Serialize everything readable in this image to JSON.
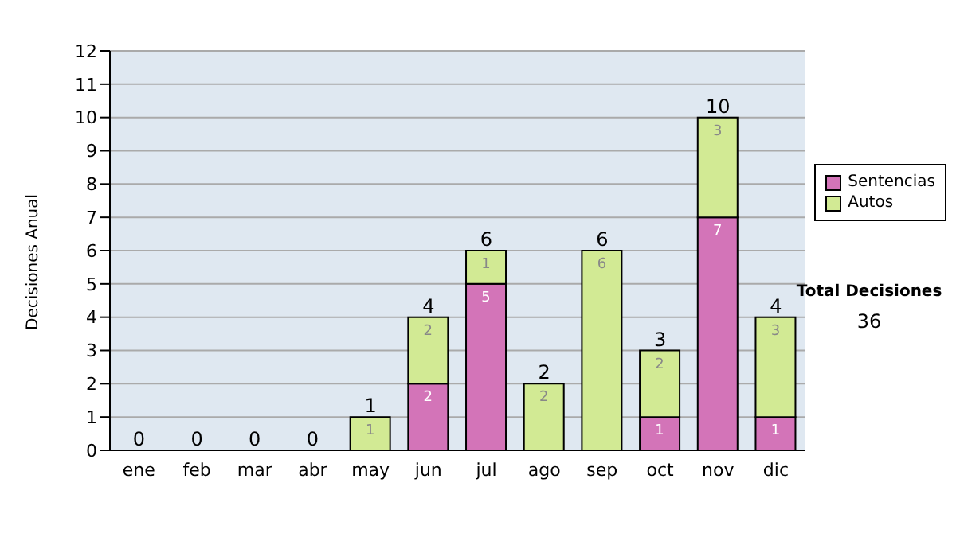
{
  "chart_data": {
    "type": "bar",
    "stacked": true,
    "ylabel": "Decisiones Anual",
    "categories": [
      "ene",
      "feb",
      "mar",
      "abr",
      "may",
      "jun",
      "jul",
      "ago",
      "sep",
      "oct",
      "nov",
      "dic"
    ],
    "series": [
      {
        "name": "Sentencias",
        "color": "#d374b8",
        "values": [
          0,
          0,
          0,
          0,
          0,
          2,
          5,
          0,
          0,
          1,
          7,
          1
        ],
        "value_labels": [
          null,
          null,
          null,
          null,
          null,
          "2",
          "5",
          null,
          null,
          "1",
          "7",
          "1"
        ]
      },
      {
        "name": "Autos",
        "color": "#d2ea94",
        "values": [
          0,
          0,
          0,
          0,
          1,
          2,
          1,
          2,
          6,
          2,
          3,
          3
        ],
        "value_labels": [
          null,
          null,
          null,
          null,
          "1",
          "2",
          "1",
          "2",
          "6",
          "2",
          "3",
          "3"
        ]
      }
    ],
    "totals": [
      "0",
      "0",
      "0",
      "0",
      "1",
      "4",
      "6",
      "2",
      "6",
      "3",
      "10",
      "4"
    ],
    "ylim": [
      0,
      12
    ],
    "yticks": [
      0,
      1,
      2,
      3,
      4,
      5,
      6,
      7,
      8,
      9,
      10,
      11,
      12
    ],
    "grid": "y",
    "legend": "right",
    "annotations": [
      "Total Decisiones",
      "36"
    ]
  }
}
